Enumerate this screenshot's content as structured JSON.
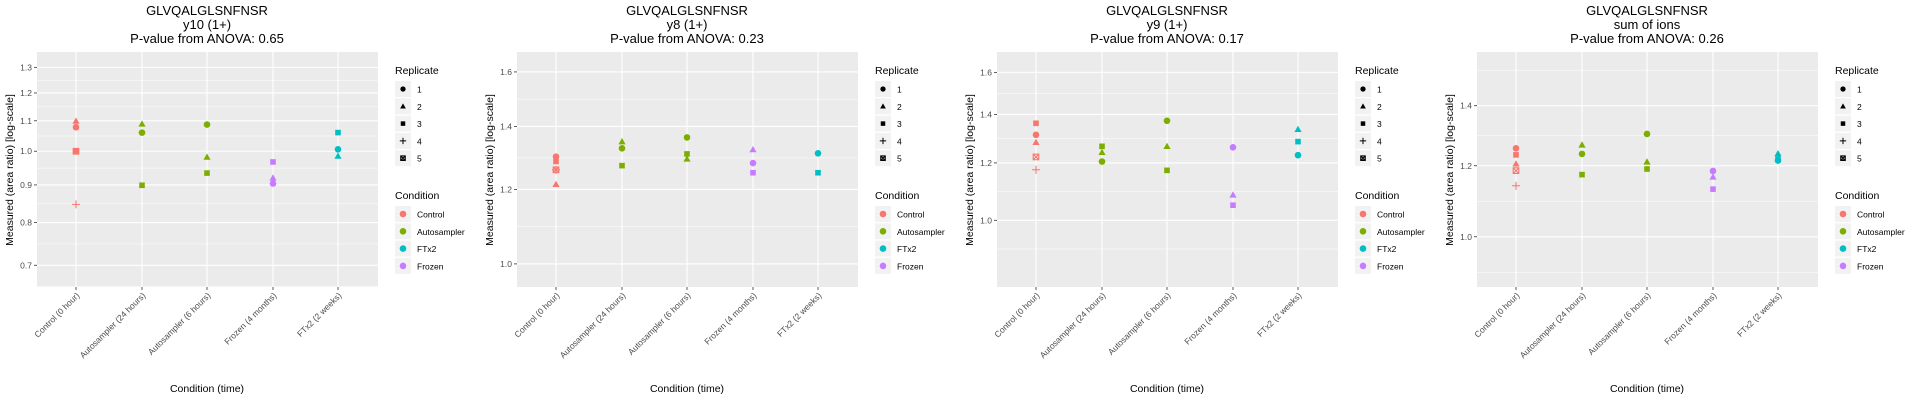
{
  "chart_data": {
    "type": "scatter",
    "categories": [
      "Control (0 hour)",
      "Autosampler (24 hours)",
      "Autosampler (6 hours)",
      "Frozen (4 months)",
      "FTx2 (2 weeks)"
    ],
    "category_condition": [
      "Control",
      "Autosampler",
      "Autosampler",
      "Frozen",
      "FTx2"
    ],
    "xlabel": "Condition (time)",
    "ylabel": "Measured (area ratio) [log-scale]",
    "yscale": "log",
    "grid": true,
    "legend_placement": "right",
    "legend_replicate": {
      "title": "Replicate",
      "items": [
        "1",
        "2",
        "3",
        "4",
        "5"
      ]
    },
    "legend_condition": {
      "title": "Condition",
      "items": [
        "Control",
        "Autosampler",
        "FTx2",
        "Frozen"
      ]
    },
    "colors": {
      "Control": "#F8766D",
      "Autosampler": "#7CAE00",
      "FTx2": "#00BFC4",
      "Frozen": "#C77CFF"
    },
    "panels": [
      {
        "title": [
          "GLVQALGLSNFNSR",
          "y10 (1+)",
          "P-value from ANOVA: 0.65"
        ],
        "ylim": [
          0.654,
          1.364
        ],
        "yticks": [
          0.7,
          0.8,
          0.9,
          1.0,
          1.1,
          1.2,
          1.3
        ],
        "ytick_labels": [
          "0.7",
          "0.8",
          "0.9",
          "1.0",
          "1.1",
          "1.2",
          "1.3"
        ],
        "points": [
          {
            "cat": 0,
            "rep": 1,
            "y": 1.078
          },
          {
            "cat": 0,
            "rep": 2,
            "y": 1.099
          },
          {
            "cat": 0,
            "rep": 3,
            "y": 1.0
          },
          {
            "cat": 0,
            "rep": 4,
            "y": 0.847
          },
          {
            "cat": 0,
            "rep": 5,
            "y": 1.0
          },
          {
            "cat": 1,
            "rep": 1,
            "y": 1.06
          },
          {
            "cat": 1,
            "rep": 2,
            "y": 1.089
          },
          {
            "cat": 1,
            "rep": 3,
            "y": 0.899
          },
          {
            "cat": 2,
            "rep": 1,
            "y": 1.087
          },
          {
            "cat": 2,
            "rep": 2,
            "y": 0.982
          },
          {
            "cat": 2,
            "rep": 3,
            "y": 0.934
          },
          {
            "cat": 3,
            "rep": 1,
            "y": 0.904
          },
          {
            "cat": 3,
            "rep": 2,
            "y": 0.92
          },
          {
            "cat": 3,
            "rep": 3,
            "y": 0.967
          },
          {
            "cat": 4,
            "rep": 1,
            "y": 1.006
          },
          {
            "cat": 4,
            "rep": 2,
            "y": 0.985
          },
          {
            "cat": 4,
            "rep": 3,
            "y": 1.06
          }
        ]
      },
      {
        "title": [
          "GLVQALGLSNFNSR",
          "y8 (1+)",
          "P-value from ANOVA: 0.23"
        ],
        "ylim": [
          0.945,
          1.68
        ],
        "yticks": [
          1.0,
          1.2,
          1.4,
          1.6
        ],
        "ytick_labels": [
          "1.0",
          "1.2",
          "1.4",
          "1.6"
        ],
        "points": [
          {
            "cat": 0,
            "rep": 1,
            "y": 1.3
          },
          {
            "cat": 0,
            "rep": 2,
            "y": 1.215
          },
          {
            "cat": 0,
            "rep": 3,
            "y": 1.285
          },
          {
            "cat": 0,
            "rep": 4,
            "y": 1.259
          },
          {
            "cat": 0,
            "rep": 5,
            "y": 1.259
          },
          {
            "cat": 1,
            "rep": 1,
            "y": 1.327
          },
          {
            "cat": 1,
            "rep": 2,
            "y": 1.349
          },
          {
            "cat": 1,
            "rep": 3,
            "y": 1.272
          },
          {
            "cat": 2,
            "rep": 1,
            "y": 1.363
          },
          {
            "cat": 2,
            "rep": 2,
            "y": 1.293
          },
          {
            "cat": 2,
            "rep": 3,
            "y": 1.309
          },
          {
            "cat": 3,
            "rep": 1,
            "y": 1.28
          },
          {
            "cat": 3,
            "rep": 2,
            "y": 1.323
          },
          {
            "cat": 3,
            "rep": 3,
            "y": 1.25
          },
          {
            "cat": 4,
            "rep": 1,
            "y": 1.311
          },
          {
            "cat": 4,
            "rep": 3,
            "y": 1.25
          }
        ]
      },
      {
        "title": [
          "GLVQALGLSNFNSR",
          "y9 (1+)",
          "P-value from ANOVA: 0.17"
        ],
        "ylim": [
          0.809,
          1.707
        ],
        "yticks": [
          1.0,
          1.2,
          1.4,
          1.6
        ],
        "ytick_labels": [
          "1.0",
          "1.2",
          "1.4",
          "1.6"
        ],
        "points": [
          {
            "cat": 0,
            "rep": 1,
            "y": 1.312
          },
          {
            "cat": 0,
            "rep": 2,
            "y": 1.281
          },
          {
            "cat": 0,
            "rep": 3,
            "y": 1.361
          },
          {
            "cat": 0,
            "rep": 4,
            "y": 1.174
          },
          {
            "cat": 0,
            "rep": 5,
            "y": 1.223
          },
          {
            "cat": 1,
            "rep": 1,
            "y": 1.205
          },
          {
            "cat": 1,
            "rep": 2,
            "y": 1.241
          },
          {
            "cat": 1,
            "rep": 3,
            "y": 1.265
          },
          {
            "cat": 2,
            "rep": 1,
            "y": 1.372
          },
          {
            "cat": 2,
            "rep": 2,
            "y": 1.265
          },
          {
            "cat": 2,
            "rep": 3,
            "y": 1.172
          },
          {
            "cat": 3,
            "rep": 1,
            "y": 1.261
          },
          {
            "cat": 3,
            "rep": 2,
            "y": 1.084
          },
          {
            "cat": 3,
            "rep": 3,
            "y": 1.049
          },
          {
            "cat": 4,
            "rep": 1,
            "y": 1.23
          },
          {
            "cat": 4,
            "rep": 2,
            "y": 1.335
          },
          {
            "cat": 4,
            "rep": 3,
            "y": 1.284
          }
        ]
      },
      {
        "title": [
          "GLVQALGLSNFNSR",
          "sum of ions",
          "P-value from ANOVA: 0.26"
        ],
        "ylim": [
          0.879,
          1.607
        ],
        "yticks": [
          1.0,
          1.2,
          1.4
        ],
        "ytick_labels": [
          "1.0",
          "1.2",
          "1.4"
        ],
        "points": [
          {
            "cat": 0,
            "rep": 1,
            "y": 1.255
          },
          {
            "cat": 0,
            "rep": 2,
            "y": 1.206
          },
          {
            "cat": 0,
            "rep": 3,
            "y": 1.234
          },
          {
            "cat": 0,
            "rep": 4,
            "y": 1.14
          },
          {
            "cat": 0,
            "rep": 5,
            "y": 1.185
          },
          {
            "cat": 1,
            "rep": 1,
            "y": 1.237
          },
          {
            "cat": 1,
            "rep": 2,
            "y": 1.266
          },
          {
            "cat": 1,
            "rep": 3,
            "y": 1.173
          },
          {
            "cat": 2,
            "rep": 1,
            "y": 1.302
          },
          {
            "cat": 2,
            "rep": 2,
            "y": 1.212
          },
          {
            "cat": 2,
            "rep": 3,
            "y": 1.19
          },
          {
            "cat": 3,
            "rep": 1,
            "y": 1.184
          },
          {
            "cat": 3,
            "rep": 2,
            "y": 1.166
          },
          {
            "cat": 3,
            "rep": 3,
            "y": 1.13
          },
          {
            "cat": 4,
            "rep": 1,
            "y": 1.216
          },
          {
            "cat": 4,
            "rep": 2,
            "y": 1.238
          },
          {
            "cat": 4,
            "rep": 3,
            "y": 1.221
          }
        ]
      }
    ]
  }
}
